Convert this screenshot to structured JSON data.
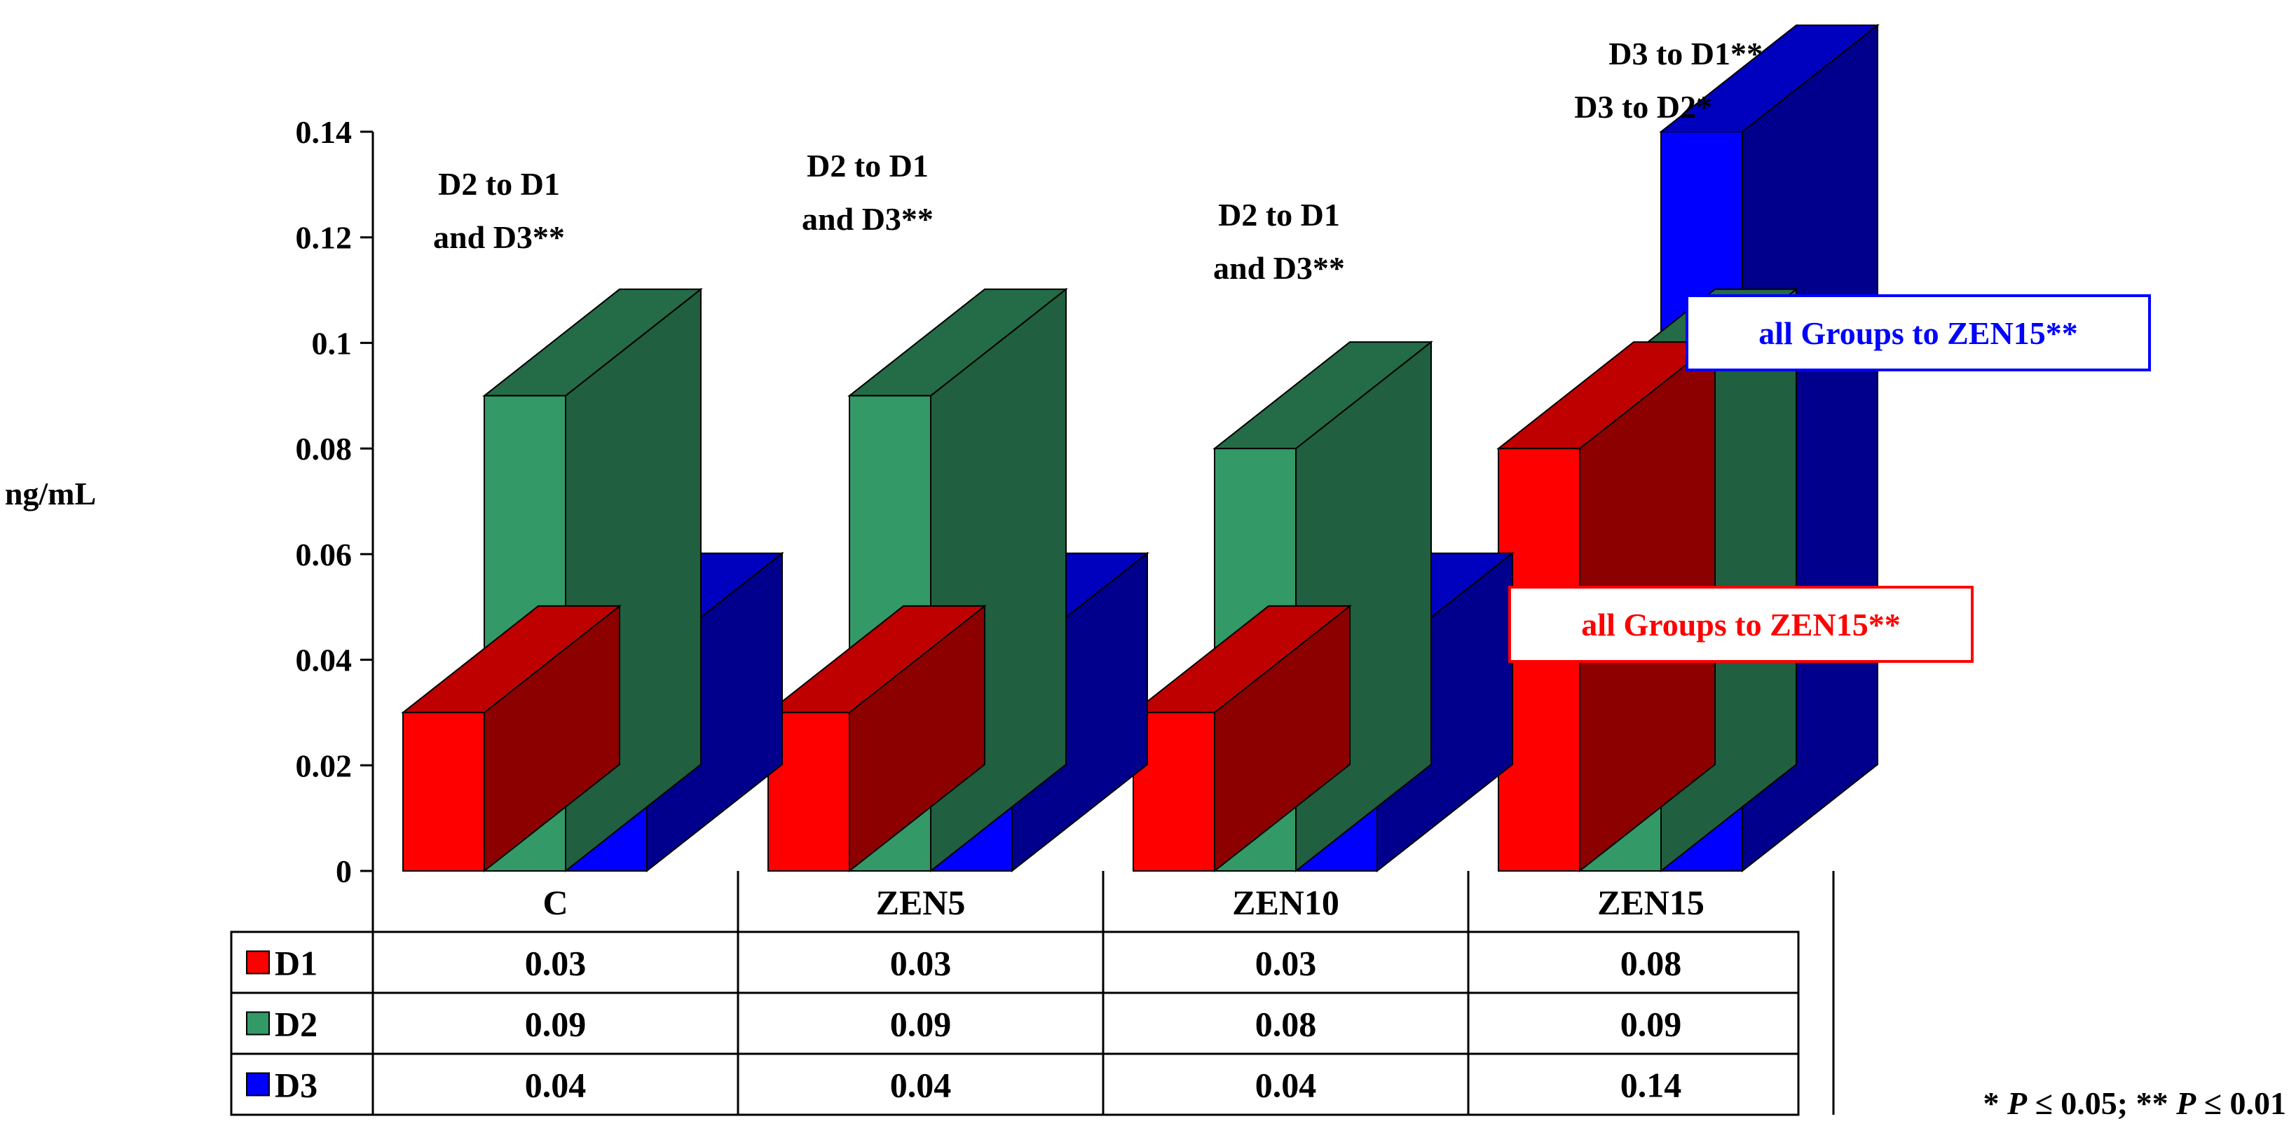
{
  "chart_data": {
    "type": "bar",
    "style": "3d-clustered",
    "categories": [
      "C",
      "ZEN5",
      "ZEN10",
      "ZEN15"
    ],
    "series": [
      {
        "name": "D1",
        "color": "#ff0000",
        "values": [
          0.03,
          0.03,
          0.03,
          0.08
        ]
      },
      {
        "name": "D2",
        "color": "#339966",
        "values": [
          0.09,
          0.09,
          0.08,
          0.09
        ]
      },
      {
        "name": "D3",
        "color": "#0000ff",
        "values": [
          0.04,
          0.04,
          0.04,
          0.14
        ]
      }
    ],
    "ylabel": "ng/mL",
    "ylim": [
      0,
      0.14
    ],
    "yticks": [
      "0",
      "0.02",
      "0.04",
      "0.06",
      "0.08",
      "0.1",
      "0.12",
      "0.14"
    ],
    "data_table": true,
    "annotations": [
      {
        "category": "C",
        "lines": [
          "D2 to D1",
          "and D3**"
        ]
      },
      {
        "category": "ZEN5",
        "lines": [
          "D2 to D1",
          "and D3**"
        ]
      },
      {
        "category": "ZEN10",
        "lines": [
          "D2 to D1",
          "and D3**"
        ]
      },
      {
        "category": "ZEN15",
        "lines": [
          "D3 to D1**",
          "D3 to D2*"
        ]
      }
    ],
    "boxed_notes": [
      {
        "text": "all Groups  to ZEN15**",
        "color": "#0000ff",
        "series": "D3"
      },
      {
        "text": "all Groups  to ZEN15**",
        "color": "#ff0000",
        "series": "D1"
      }
    ],
    "footnote": {
      "parts": [
        "* ",
        "P",
        " ≤ 0.05; ** ",
        "P",
        " ≤ 0.01"
      ]
    }
  }
}
